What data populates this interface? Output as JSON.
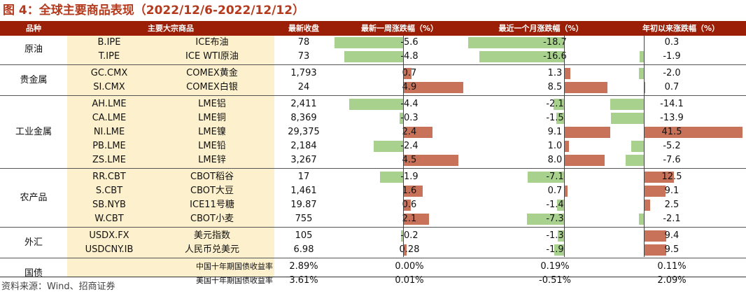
{
  "title": "图 4：全球主要商品表现（2022/12/6-2022/12/12）",
  "colors": {
    "title": "#b43a1e",
    "header_bg": "#9a1f06",
    "highlight_bg": "#fdf0cc",
    "negative_bar": "#a9d18e",
    "positive_bar": "#c8725a"
  },
  "columns": [
    "品种",
    "主要大宗商品",
    "最新收盘",
    "最新一周涨跌幅（%）",
    "最近一个月涨跌幅（%）",
    "年初以来涨跌幅（%）"
  ],
  "categories": [
    {
      "label": "原油",
      "rows": [
        {
          "code": "B.IPE",
          "name": "ICE布油",
          "close": "78",
          "week": -5.6,
          "week_label": "-5.6",
          "month": -18.7,
          "month_label": "-18.7",
          "ytd": 0.3,
          "ytd_label": "0.3"
        },
        {
          "code": "T.IPE",
          "name": "ICE WTI原油",
          "close": "73",
          "week": -4.8,
          "week_label": "-4.8",
          "month": -16.6,
          "month_label": "-16.6",
          "ytd": -1.9,
          "ytd_label": "-1.9"
        }
      ]
    },
    {
      "label": "贵金属",
      "rows": [
        {
          "code": "GC.CMX",
          "name": "COMEX黄金",
          "close": "1,793",
          "week": 0.7,
          "week_label": "0.7",
          "month": 1.3,
          "month_label": "1.3",
          "ytd": -2.0,
          "ytd_label": "-2.0"
        },
        {
          "code": "SI.CMX",
          "name": "COMEX白银",
          "close": "24",
          "week": 4.9,
          "week_label": "4.9",
          "month": 8.5,
          "month_label": "8.5",
          "ytd": 0.7,
          "ytd_label": "0.7"
        }
      ]
    },
    {
      "label": "工业金属",
      "rows": [
        {
          "code": "AH.LME",
          "name": "LME铝",
          "close": "2,411",
          "week": -4.4,
          "week_label": "-4.4",
          "month": -2.1,
          "month_label": "-2.1",
          "ytd": -14.1,
          "ytd_label": "-14.1"
        },
        {
          "code": "CA.LME",
          "name": "LME铜",
          "close": "8,369",
          "week": -0.3,
          "week_label": "-0.3",
          "month": -1.5,
          "month_label": "-1.5",
          "ytd": -13.9,
          "ytd_label": "-13.9"
        },
        {
          "code": "NI.LME",
          "name": "LME镍",
          "close": "29,375",
          "week": 2.4,
          "week_label": "2.4",
          "month": 9.1,
          "month_label": "9.1",
          "ytd": 41.5,
          "ytd_label": "41.5"
        },
        {
          "code": "PB.LME",
          "name": "LME铅",
          "close": "2,184",
          "week": -2.4,
          "week_label": "-2.4",
          "month": 1.0,
          "month_label": "1.0",
          "ytd": -5.2,
          "ytd_label": "-5.2"
        },
        {
          "code": "ZS.LME",
          "name": "LME锌",
          "close": "3,267",
          "week": 4.5,
          "week_label": "4.5",
          "month": 8.0,
          "month_label": "8.0",
          "ytd": -7.6,
          "ytd_label": "-7.6"
        }
      ]
    },
    {
      "label": "农产品",
      "rows": [
        {
          "code": "RR.CBT",
          "name": "CBOT稻谷",
          "close": "17",
          "week": -1.9,
          "week_label": "-1.9",
          "month": -7.1,
          "month_label": "-7.1",
          "ytd": 12.5,
          "ytd_label": "12.5"
        },
        {
          "code": "S.CBT",
          "name": "CBOT大豆",
          "close": "1,461",
          "week": 1.6,
          "week_label": "1.6",
          "month": 0.7,
          "month_label": "0.7",
          "ytd": 9.1,
          "ytd_label": "9.1"
        },
        {
          "code": "SB.NYB",
          "name": "ICE11号糖",
          "close": "19.87",
          "week": 0.6,
          "week_label": "0.6",
          "month": -1.4,
          "month_label": "-1.4",
          "ytd": 2.5,
          "ytd_label": "2.5"
        },
        {
          "code": "W.CBT",
          "name": "CBOT小麦",
          "close": "755",
          "week": 2.1,
          "week_label": "2.1",
          "month": -7.3,
          "month_label": "-7.3",
          "ytd": -2.1,
          "ytd_label": "-2.1"
        }
      ]
    },
    {
      "label": "外汇",
      "rows": [
        {
          "code": "USDX.FX",
          "name": "美元指数",
          "close": "105",
          "week": -0.2,
          "week_label": "-0.2",
          "month": -1.3,
          "month_label": "-1.3",
          "ytd": 9.4,
          "ytd_label": "9.4"
        },
        {
          "code": "USDCNY.IB",
          "name": "人民币兑美元",
          "close": "6.98",
          "week": 0.28,
          "week_label": "0.28",
          "month": -1.9,
          "month_label": "-1.9",
          "ytd": 9.5,
          "ytd_label": "9.5"
        }
      ]
    },
    {
      "label": "国债",
      "rows": [
        {
          "code": "",
          "name": "中国十年期国债收益率",
          "close": "2.89%",
          "week": null,
          "week_label": "0.00%",
          "month": null,
          "month_label": "0.19%",
          "ytd": null,
          "ytd_label": "0.11%",
          "bond": true
        },
        {
          "code": "",
          "name": "美国十年期国债收益率",
          "close": "3.61%",
          "week": null,
          "week_label": "0.01%",
          "month": null,
          "month_label": "-0.51%",
          "ytd": null,
          "ytd_label": "2.09%",
          "bond": true
        }
      ]
    }
  ],
  "source": "资料来源：Wind、招商证券"
}
